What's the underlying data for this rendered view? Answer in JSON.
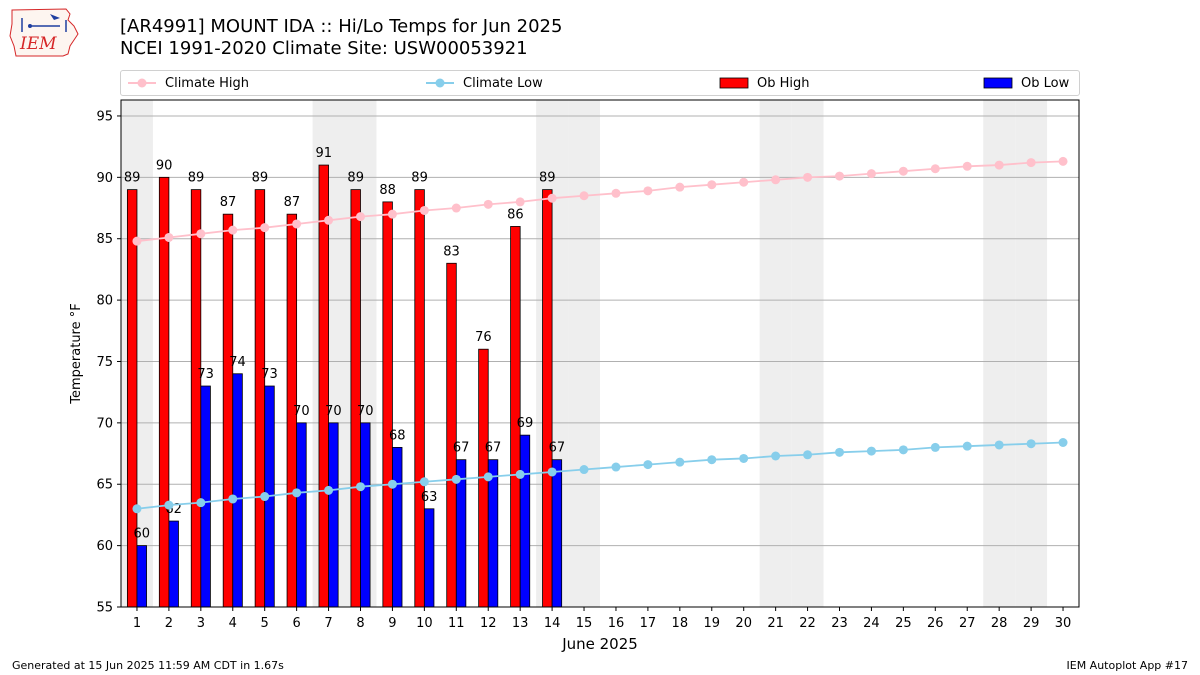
{
  "header": {
    "title_line1": "[AR4991] MOUNT IDA :: Hi/Lo Temps for Jun 2025",
    "title_line2": "NCEI 1991-2020 Climate Site: USW00053921",
    "logo_text": "IEM"
  },
  "footer": {
    "generated": "Generated at 15 Jun 2025 11:59 AM CDT in 1.67s",
    "app": "IEM Autoplot App #17"
  },
  "legend": {
    "climate_high": "Climate High",
    "climate_low": "Climate Low",
    "ob_high": "Ob High",
    "ob_low": "Ob Low"
  },
  "colors": {
    "climate_high": "#ffc0cb",
    "climate_low": "#87ceeb",
    "ob_high": "#ff0000",
    "ob_low": "#0000ff",
    "weekend_shade": "#eeeeee",
    "grid": "#b0b0b0"
  },
  "chart_data": {
    "type": "bar",
    "title": "[AR4991] MOUNT IDA :: Hi/Lo Temps for Jun 2025",
    "subtitle": "NCEI 1991-2020 Climate Site: USW00053921",
    "xlabel": "June 2025",
    "ylabel": "Temperature °F",
    "ylim": [
      55,
      96.3
    ],
    "yticks": [
      55,
      60,
      65,
      70,
      75,
      80,
      85,
      90,
      95
    ],
    "grid": true,
    "legend_position": "top",
    "days": [
      1,
      2,
      3,
      4,
      5,
      6,
      7,
      8,
      9,
      10,
      11,
      12,
      13,
      14,
      15,
      16,
      17,
      18,
      19,
      20,
      21,
      22,
      23,
      24,
      25,
      26,
      27,
      28,
      29,
      30
    ],
    "weekend_days": [
      1,
      7,
      8,
      14,
      15,
      21,
      22,
      28,
      29
    ],
    "ob_high": [
      89,
      90,
      89,
      87,
      89,
      87,
      91,
      89,
      88,
      89,
      83,
      76,
      86,
      89
    ],
    "ob_low": [
      60,
      62,
      73,
      74,
      73,
      70,
      70,
      70,
      68,
      63,
      67,
      67,
      69,
      67
    ],
    "climate_high": [
      84.8,
      85.1,
      85.4,
      85.7,
      85.9,
      86.2,
      86.5,
      86.8,
      87.0,
      87.3,
      87.5,
      87.8,
      88.0,
      88.3,
      88.5,
      88.7,
      88.9,
      89.2,
      89.4,
      89.6,
      89.8,
      90.0,
      90.1,
      90.3,
      90.5,
      90.7,
      90.9,
      91.0,
      91.2,
      91.3
    ],
    "climate_low": [
      63.0,
      63.3,
      63.5,
      63.8,
      64.0,
      64.3,
      64.5,
      64.8,
      65.0,
      65.2,
      65.4,
      65.6,
      65.8,
      66.0,
      66.2,
      66.4,
      66.6,
      66.8,
      67.0,
      67.1,
      67.3,
      67.4,
      67.6,
      67.7,
      67.8,
      68.0,
      68.1,
      68.2,
      68.3,
      68.4
    ]
  }
}
